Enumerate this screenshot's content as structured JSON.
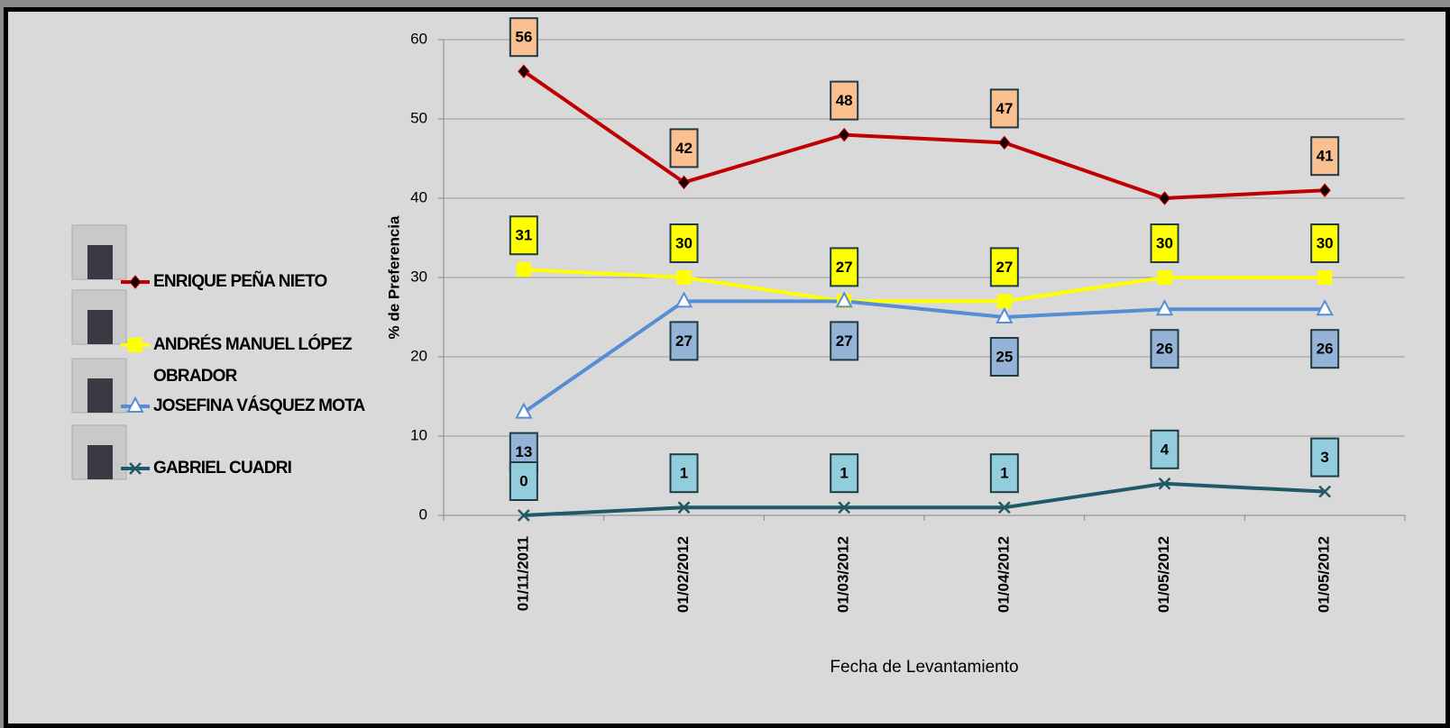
{
  "chart_data": {
    "type": "line",
    "y_axis_label": "% de Preferencia",
    "x_axis_label": "Fecha de Levantamiento",
    "categories": [
      "01/11/2011",
      "01/02/2012",
      "01/03/2012",
      "01/04/2012",
      "01/05/2012",
      "01/05/2012"
    ],
    "ylim": [
      0,
      60
    ],
    "yticks": [
      0,
      10,
      20,
      30,
      40,
      50,
      60
    ],
    "grid": true,
    "legend_position": "left",
    "series": [
      {
        "name": "ENRIQUE PEÑA NIETO",
        "color": "#c00000",
        "marker": "diamond",
        "label_fill": "#fac090",
        "label_position": "above",
        "values": [
          56,
          42,
          48,
          47,
          40,
          41
        ],
        "value_labels": [
          "56",
          "42",
          "48",
          "47",
          null,
          "41"
        ]
      },
      {
        "name": "ANDRÉS MANUEL LÓPEZ OBRADOR",
        "color": "#ffff00",
        "marker": "square",
        "label_fill": "#ffff00",
        "label_position": "above",
        "values": [
          31,
          30,
          27,
          27,
          30,
          30
        ]
      },
      {
        "name": "JOSEFINA VÁSQUEZ MOTA",
        "color": "#558ed5",
        "marker": "triangle",
        "label_fill": "#95b3d7",
        "label_position": "below",
        "values": [
          13,
          27,
          27,
          25,
          26,
          26
        ]
      },
      {
        "name": "GABRIEL CUADRI",
        "color": "#215967",
        "marker": "x",
        "label_fill": "#93cddd",
        "label_position": "above",
        "values": [
          0,
          1,
          1,
          1,
          4,
          3
        ]
      }
    ]
  }
}
